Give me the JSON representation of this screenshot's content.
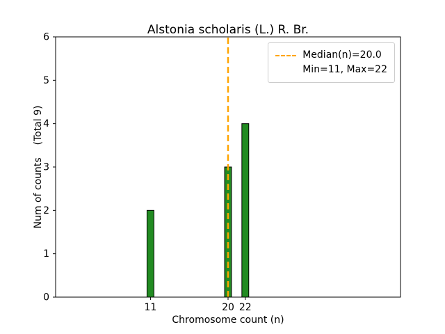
{
  "figure": {
    "background": "#ffffff"
  },
  "chart_data": {
    "type": "bar",
    "title": "Alstonia scholaris (L.) R. Br.",
    "xlabel": "Chromosome count (n)",
    "ylabel": "Num of counts    (Total 9)",
    "categories": [
      11,
      20,
      22
    ],
    "values": [
      2,
      3,
      4
    ],
    "total_counts": 9,
    "bar_color": "#228B22",
    "bar_edge_color": "#000000",
    "bar_width": 0.8,
    "xlim": [
      0,
      40
    ],
    "ylim": [
      0,
      6
    ],
    "xticks": [
      11,
      20,
      22
    ],
    "yticks": [
      0,
      1,
      2,
      3,
      4,
      5,
      6
    ],
    "grid": false,
    "median_line": {
      "x": 20.0,
      "color": "#ffa500",
      "style": "dashed"
    },
    "legend": {
      "position": "upper right",
      "entries": [
        {
          "label": "Median(n)=20.0",
          "marker": "dashed-line",
          "color": "#ffa500"
        },
        {
          "label": "Min=11, Max=22",
          "marker": "none"
        }
      ]
    }
  }
}
